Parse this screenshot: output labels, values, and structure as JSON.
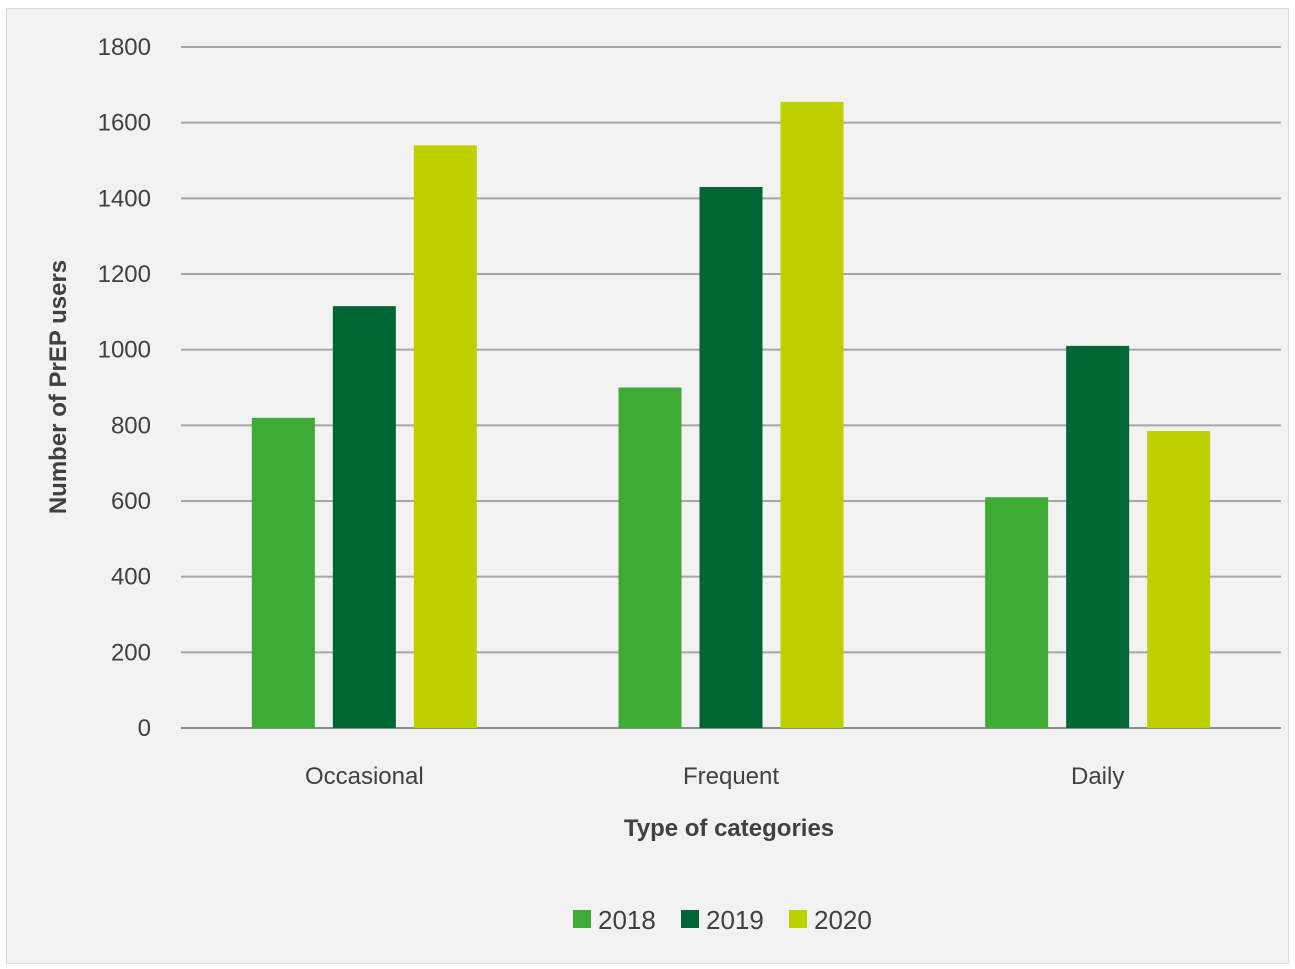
{
  "chart_data": {
    "type": "bar",
    "title": "",
    "xlabel": "Type of categories",
    "ylabel": "Number of PrEP users",
    "categories": [
      "Occasional",
      "Frequent",
      "Daily"
    ],
    "series": [
      {
        "name": "2018",
        "color": "#3dab35",
        "values": [
          820,
          900,
          610
        ]
      },
      {
        "name": "2019",
        "color": "#006633",
        "values": [
          1115,
          1430,
          1010
        ]
      },
      {
        "name": "2020",
        "color": "#bed000",
        "values": [
          1540,
          1655,
          785
        ]
      }
    ],
    "ylim": [
      0,
      1800
    ],
    "yticks": [
      0,
      200,
      400,
      600,
      800,
      1000,
      1200,
      1400,
      1600,
      1800
    ],
    "grid": true,
    "legend_position": "bottom"
  }
}
